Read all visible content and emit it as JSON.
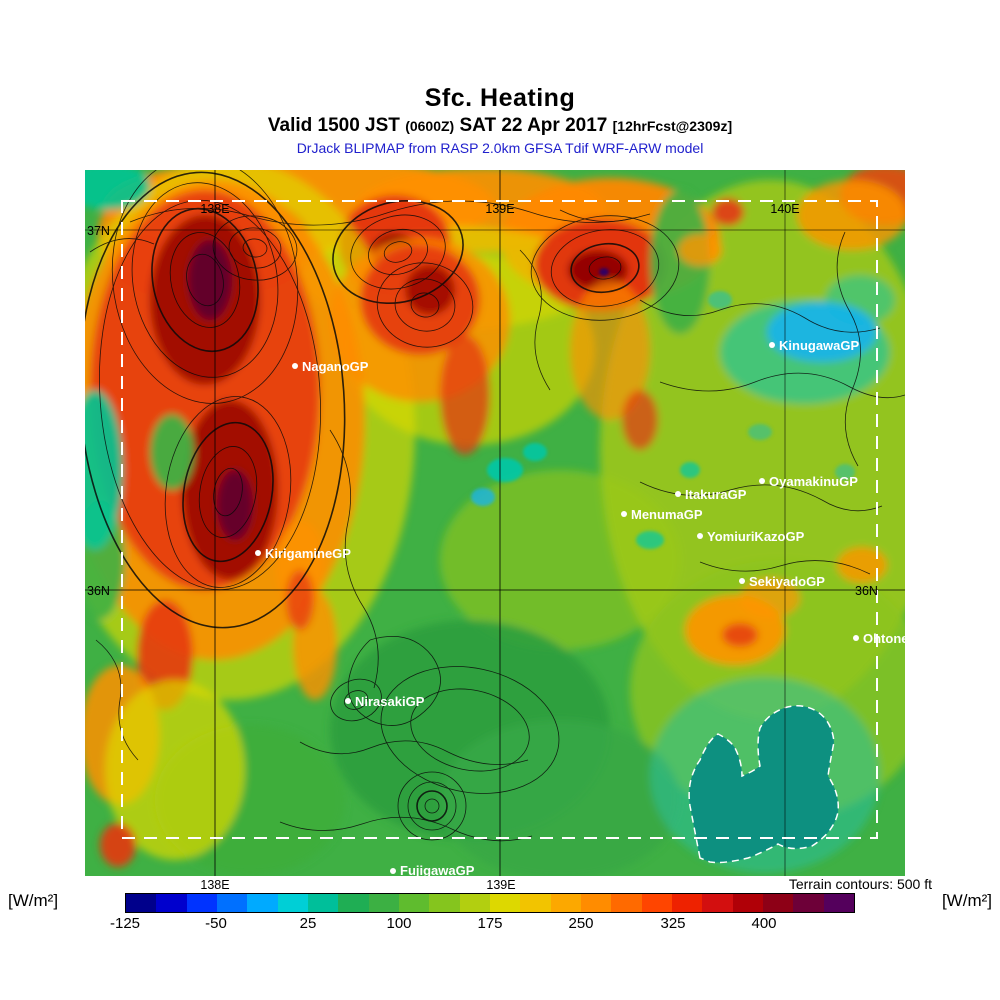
{
  "header": {
    "title": "Sfc. Heating",
    "valid_prefix": "Valid 1500 JST",
    "valid_zulu": "(0600Z)",
    "valid_mid": "SAT 22 Apr 2017",
    "valid_fcst": "[12hrFcst@2309z]",
    "model_line": "DrJack BLIPMAP from RASP 2.0km GFSA Tdif WRF-ARW model"
  },
  "map": {
    "grid_labels": {
      "top_138e": "138E",
      "top_139e": "139E",
      "top_140e": "140E",
      "left_37n": "37N",
      "left_36n": "36N",
      "right_36n": "36N",
      "bottom_138e": "138E",
      "bottom_139e": "139E"
    },
    "terrain_note": "Terrain contours: 500 ft",
    "stations": [
      {
        "label": "NaganoGP"
      },
      {
        "label": "KinugawaGP"
      },
      {
        "label": "OyamakinuGP"
      },
      {
        "label": "ItakuraGP"
      },
      {
        "label": "MenumaGP"
      },
      {
        "label": "YomiuriKazoGP"
      },
      {
        "label": "KirigamineGP"
      },
      {
        "label": "SekiyadoGP"
      },
      {
        "label": "OhtoneGP"
      },
      {
        "label": "NirasakiGP"
      },
      {
        "label": "FujigawaGP"
      }
    ]
  },
  "colorbar": {
    "unit_left": "[W/m²]",
    "unit_right": "[W/m²]",
    "ticks": [
      "-125",
      "-50",
      "25",
      "100",
      "175",
      "250",
      "325",
      "400"
    ],
    "segment_colors": [
      "#00008b",
      "#0000cd",
      "#0033ff",
      "#0070ff",
      "#00aaff",
      "#00cfd6",
      "#00bf9a",
      "#1fae54",
      "#3cb043",
      "#5fbc2e",
      "#85c51e",
      "#b2cf10",
      "#ddd800",
      "#f2c400",
      "#fca800",
      "#ff8c00",
      "#ff6a00",
      "#ff4500",
      "#ee2200",
      "#d30f0f",
      "#b00007",
      "#8d0016",
      "#6d0038",
      "#54005c"
    ]
  },
  "colors": {
    "model_text": "#2121cd",
    "station_label": "#ffffff",
    "domain_boundary": "#ffffff",
    "water": "#0d9080"
  }
}
